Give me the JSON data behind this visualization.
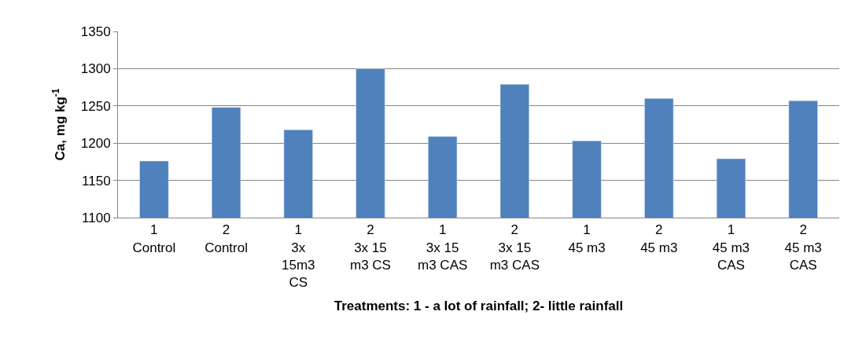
{
  "chart_data": {
    "type": "bar",
    "categories": [
      "1\nControl",
      "2\nControl",
      "1\n3x\n15m3\nCS",
      "2\n3x 15\nm3 CS",
      "1\n3x 15\nm3 CAS",
      "2\n3x 15\nm3 CAS",
      "1\n45 m3",
      "2\n45 m3",
      "1\n45 m3\nCAS",
      "2\n45 m3\nCAS"
    ],
    "values": [
      1176,
      1248,
      1218,
      1300,
      1209,
      1279,
      1203,
      1260,
      1179,
      1257
    ],
    "color": "#4f81bd",
    "ylim": [
      1100,
      1350
    ],
    "yticks": [
      1100,
      1150,
      1200,
      1250,
      1300,
      1350
    ],
    "ylabel": "Ca, mg kg$^{-1}$",
    "xlabel": "Treatments: 1 - a lot of rainfall; 2- little rainfall",
    "grid": "y"
  }
}
